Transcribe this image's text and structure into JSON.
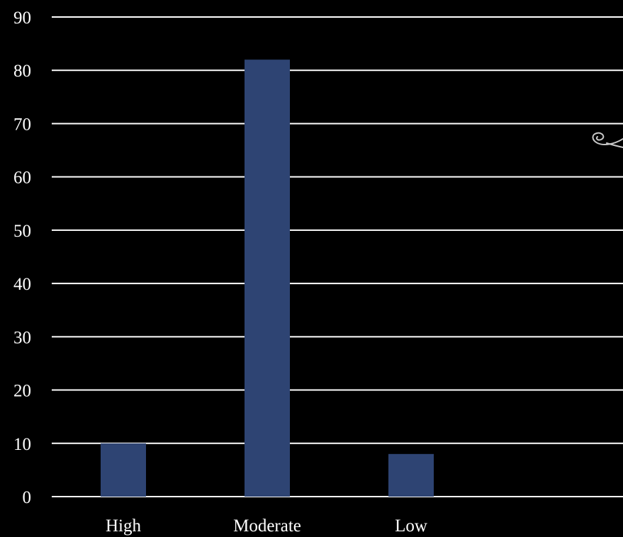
{
  "chart_data": {
    "type": "bar",
    "categories": [
      "High",
      "Moderate",
      "Low"
    ],
    "values": [
      10,
      82,
      8
    ],
    "title": "",
    "xlabel": "",
    "ylabel": "",
    "ylim": [
      0,
      90
    ],
    "yticks": [
      0,
      10,
      20,
      30,
      40,
      50,
      60,
      70,
      80,
      90
    ],
    "grid": true,
    "legend": "none",
    "colors": {
      "background": "#000000",
      "bar": "#2e4473",
      "grid": "#ffffff",
      "text": "#ffffff"
    }
  }
}
